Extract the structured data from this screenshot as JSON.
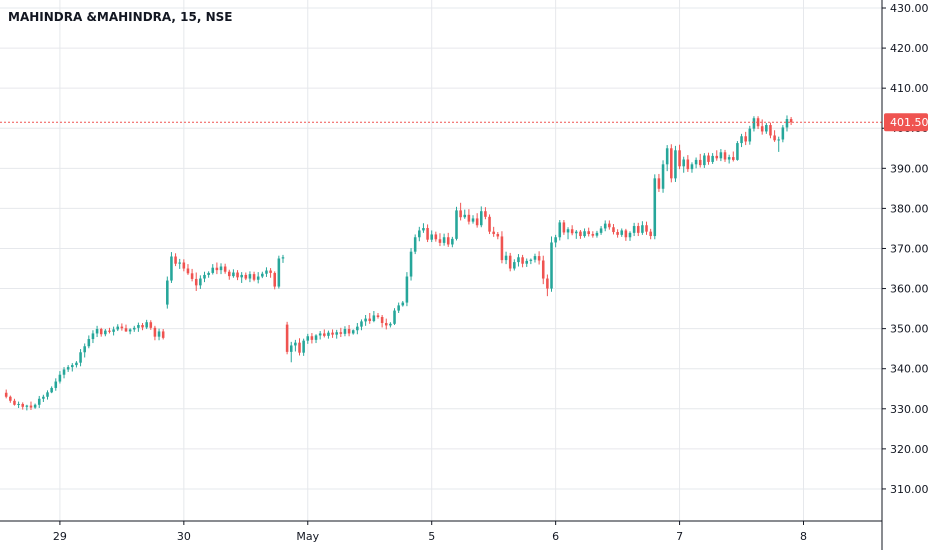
{
  "chart_data": {
    "type": "candlestick",
    "title": "MAHINDRA &MAHINDRA, 15, NSE",
    "ylim": [
      302,
      432
    ],
    "y_ticks": [
      310,
      320,
      330,
      340,
      350,
      360,
      370,
      380,
      390,
      400,
      410,
      420,
      430
    ],
    "y_tick_labels": [
      "310.00",
      "320.00",
      "330.00",
      "340.00",
      "350.00",
      "360.00",
      "370.00",
      "380.00",
      "390.00",
      "400.00",
      "410.00",
      "420.00",
      "430.00"
    ],
    "x_ticks": [
      {
        "label": "29",
        "at": 13
      },
      {
        "label": "30",
        "at": 43
      },
      {
        "label": "May",
        "at": 73
      },
      {
        "label": "5",
        "at": 103
      },
      {
        "label": "6",
        "at": 133
      },
      {
        "label": "7",
        "at": 163
      },
      {
        "label": "8",
        "at": 193
      }
    ],
    "x_range": [
      -1.5,
      212
    ],
    "last_price": 401.5,
    "last_price_label": "401.50",
    "grid": true,
    "colors": {
      "up": "#26a69a",
      "down": "#ef5350",
      "grid": "#e6e8ec",
      "last_line": "#ef5350",
      "axis": "#131722"
    },
    "candles": [
      [
        334,
        334.8,
        332.6,
        333
      ],
      [
        333,
        333.3,
        331.5,
        332
      ],
      [
        332,
        332.5,
        330.8,
        331
      ],
      [
        331,
        331.8,
        330.2,
        331.2
      ],
      [
        331.2,
        331.6,
        329.8,
        330.5
      ],
      [
        330.5,
        331,
        329.6,
        330.8
      ],
      [
        330.8,
        331.8,
        329.7,
        330.3
      ],
      [
        330.3,
        331.3,
        330,
        331
      ],
      [
        331,
        333.2,
        330.2,
        332.5
      ],
      [
        332.5,
        333.5,
        331.7,
        333
      ],
      [
        333,
        334.6,
        332.3,
        334.1
      ],
      [
        334.1,
        335.6,
        333.9,
        335.2
      ],
      [
        335.2,
        337.6,
        334.5,
        336.8
      ],
      [
        336.8,
        339.4,
        336.3,
        338.5
      ],
      [
        338.5,
        340.4,
        337.6,
        339.8
      ],
      [
        339.8,
        340.9,
        339.2,
        340.4
      ],
      [
        340.4,
        341.4,
        339.3,
        340.9
      ],
      [
        340.9,
        341.9,
        340.3,
        341.5
      ],
      [
        341.5,
        344.9,
        340.6,
        344.1
      ],
      [
        344.1,
        346.3,
        342.8,
        345.6
      ],
      [
        345.6,
        348.3,
        345.1,
        347.4
      ],
      [
        347.4,
        349.6,
        346.4,
        348.8
      ],
      [
        348.8,
        350.7,
        347.9,
        349.9
      ],
      [
        349.9,
        350.2,
        348,
        348.6
      ],
      [
        348.6,
        349.9,
        348.1,
        349.5
      ],
      [
        349.5,
        350.2,
        348.8,
        349.2
      ],
      [
        349.2,
        350.5,
        348.3,
        349.8
      ],
      [
        349.8,
        351.1,
        349.4,
        350.5
      ],
      [
        350.5,
        351.3,
        349.5,
        350.1
      ],
      [
        350.1,
        351,
        349.2,
        349.3
      ],
      [
        349.3,
        350.1,
        348.6,
        349.8
      ],
      [
        349.8,
        350.7,
        349.2,
        350.2
      ],
      [
        350.2,
        351.5,
        349.2,
        350.9
      ],
      [
        350.9,
        351.4,
        349.6,
        350.3
      ],
      [
        350.3,
        352.2,
        349.9,
        351.6
      ],
      [
        351.6,
        352.1,
        349.7,
        350.2
      ],
      [
        350.2,
        350.7,
        347.1,
        348
      ],
      [
        348,
        350,
        347.1,
        349.3
      ],
      [
        349.3,
        349.9,
        347.3,
        347.7
      ],
      [
        356,
        363,
        355,
        362
      ],
      [
        362,
        369.1,
        361.4,
        368
      ],
      [
        368,
        368.8,
        365.6,
        366.2
      ],
      [
        366.2,
        367.4,
        364.9,
        366.5
      ],
      [
        366.5,
        367.3,
        364.3,
        365
      ],
      [
        365,
        366.1,
        363.4,
        363.8
      ],
      [
        363.8,
        364.9,
        361.8,
        362.4
      ],
      [
        362.4,
        364,
        359.4,
        360.8
      ],
      [
        360.8,
        363.3,
        359.9,
        362.5
      ],
      [
        362.5,
        364.2,
        361.6,
        363.4
      ],
      [
        363.4,
        364.3,
        362.7,
        363.9
      ],
      [
        363.9,
        366.1,
        363.5,
        365.2
      ],
      [
        365.2,
        366.5,
        363.6,
        364.6
      ],
      [
        364.6,
        366.3,
        363.6,
        365.5
      ],
      [
        365.5,
        366.2,
        363.7,
        364.2
      ],
      [
        364.2,
        364.7,
        362.2,
        363.1
      ],
      [
        363.1,
        364.8,
        362.7,
        364
      ],
      [
        364,
        364.6,
        362.1,
        362.8
      ],
      [
        362.8,
        364.1,
        361.4,
        363.4
      ],
      [
        363.4,
        364,
        362.1,
        362.5
      ],
      [
        362.5,
        364.3,
        361.6,
        363.6
      ],
      [
        363.6,
        364.2,
        361.8,
        362.2
      ],
      [
        362.2,
        364.1,
        361.3,
        363
      ],
      [
        363,
        364.2,
        362.6,
        363.7
      ],
      [
        363.7,
        365.3,
        362.9,
        364.5
      ],
      [
        364.5,
        365.1,
        362.7,
        363.9
      ],
      [
        363.9,
        364.3,
        359.8,
        360.5
      ],
      [
        360.5,
        368.2,
        360,
        367.5
      ],
      [
        367.5,
        368.4,
        366.4,
        367.8
      ],
      [
        351,
        351.7,
        343.6,
        344.2
      ],
      [
        344.2,
        346.7,
        341.6,
        345.8
      ],
      [
        345.8,
        347.2,
        344.3,
        346.5
      ],
      [
        346.5,
        347.6,
        343.3,
        344
      ],
      [
        344,
        347.5,
        343.2,
        347
      ],
      [
        347,
        348.7,
        346.2,
        348.1
      ],
      [
        348.1,
        348.9,
        346.3,
        347.2
      ],
      [
        347.2,
        348.6,
        346.4,
        348.3
      ],
      [
        348.3,
        349.4,
        347.3,
        348.8
      ],
      [
        348.8,
        349.8,
        347.8,
        348.2
      ],
      [
        348.2,
        349.5,
        347.5,
        349
      ],
      [
        349,
        349.8,
        347.7,
        348.5
      ],
      [
        348.5,
        349.7,
        347.5,
        349.1
      ],
      [
        349.1,
        350.2,
        347.9,
        348.7
      ],
      [
        348.7,
        350.6,
        348.1,
        349.9
      ],
      [
        349.9,
        350.9,
        348.1,
        348.8
      ],
      [
        348.8,
        349.8,
        348.5,
        349.6
      ],
      [
        349.6,
        351.4,
        348.6,
        350.5
      ],
      [
        350.5,
        352.3,
        349.6,
        351.8
      ],
      [
        351.8,
        353.4,
        350.7,
        352.5
      ],
      [
        352.5,
        353.9,
        351.2,
        351.9
      ],
      [
        351.9,
        354.4,
        351.6,
        353.3
      ],
      [
        353.3,
        353.9,
        352.5,
        352.9
      ],
      [
        352.9,
        353.4,
        350.3,
        351.4
      ],
      [
        351.4,
        352.5,
        349.8,
        350.8
      ],
      [
        350.8,
        351.6,
        350.3,
        351.2
      ],
      [
        351.2,
        355.1,
        350.9,
        354.5
      ],
      [
        354.5,
        356.5,
        353.9,
        355.8
      ],
      [
        355.8,
        356.9,
        355.5,
        356.5
      ],
      [
        356.5,
        364.1,
        355.6,
        363
      ],
      [
        363,
        370.1,
        362,
        369.2
      ],
      [
        369.2,
        373.5,
        368.6,
        372.8
      ],
      [
        372.8,
        375.4,
        371.8,
        374.5
      ],
      [
        374.5,
        376.3,
        373.9,
        375.1
      ],
      [
        375.1,
        376,
        371.6,
        372.2
      ],
      [
        372.2,
        374.5,
        371.6,
        373.5
      ],
      [
        373.5,
        374.2,
        371.7,
        372.3
      ],
      [
        372.3,
        373.8,
        370.6,
        371.4
      ],
      [
        371.4,
        373.7,
        370.7,
        372.8
      ],
      [
        372.8,
        373.9,
        370.4,
        371
      ],
      [
        371,
        372.9,
        370.3,
        372.4
      ],
      [
        372.4,
        380.4,
        372,
        379.5
      ],
      [
        379.5,
        381.4,
        377,
        377.8
      ],
      [
        377.8,
        379.7,
        377.4,
        378.4
      ],
      [
        378.4,
        379.8,
        376,
        376.7
      ],
      [
        376.7,
        378.3,
        376.2,
        377.5
      ],
      [
        377.5,
        378.8,
        375.2,
        375.8
      ],
      [
        375.8,
        380.5,
        375.3,
        379.3
      ],
      [
        379.3,
        380.3,
        377.3,
        377.9
      ],
      [
        377.9,
        378.5,
        373.6,
        374.2
      ],
      [
        374.2,
        375.4,
        372.9,
        373.6
      ],
      [
        373.6,
        374.1,
        372.3,
        373
      ],
      [
        373,
        374.3,
        366.3,
        367.1
      ],
      [
        367.1,
        369.2,
        366.1,
        368.2
      ],
      [
        368.2,
        368.9,
        364.3,
        365
      ],
      [
        365,
        367.3,
        364.5,
        366.6
      ],
      [
        366.6,
        368.6,
        365.5,
        367.8
      ],
      [
        367.8,
        368.4,
        365.3,
        366.2
      ],
      [
        366.2,
        367.5,
        365.4,
        366.9
      ],
      [
        366.9,
        367.5,
        366.1,
        367.2
      ],
      [
        367.2,
        368.7,
        366.5,
        368.1
      ],
      [
        368.1,
        369.3,
        366,
        367
      ],
      [
        367,
        368.2,
        361.1,
        362.5
      ],
      [
        362.5,
        363.5,
        358.1,
        360
      ],
      [
        360,
        373,
        359.2,
        371.5
      ],
      [
        371.5,
        373.4,
        370.3,
        372.8
      ],
      [
        372.8,
        377.1,
        372,
        376.5
      ],
      [
        376.5,
        377.1,
        373.4,
        374
      ],
      [
        374,
        375.3,
        372.3,
        374.8
      ],
      [
        374.8,
        375.8,
        373.3,
        373.8
      ],
      [
        373.8,
        374.6,
        372.4,
        374.2
      ],
      [
        374.2,
        374.6,
        372.4,
        373.1
      ],
      [
        373.1,
        375,
        372.7,
        374.3
      ],
      [
        374.3,
        375.2,
        373,
        373.6
      ],
      [
        373.6,
        374.3,
        372.7,
        373.2
      ],
      [
        373.2,
        374.4,
        372.7,
        373.9
      ],
      [
        373.9,
        375.6,
        373.4,
        375
      ],
      [
        375,
        377,
        374.3,
        376.2
      ],
      [
        376.2,
        377,
        374.7,
        375.3
      ],
      [
        375.3,
        376.1,
        373.5,
        374.1
      ],
      [
        374.1,
        374.8,
        372.7,
        373.4
      ],
      [
        373.4,
        375,
        372.9,
        374.5
      ],
      [
        374.5,
        374.9,
        371.9,
        372.8
      ],
      [
        372.8,
        374.3,
        371.9,
        373.9
      ],
      [
        373.9,
        376.4,
        373.1,
        375.6
      ],
      [
        375.6,
        376.4,
        373.1,
        373.9
      ],
      [
        373.9,
        376.8,
        373.4,
        375.8
      ],
      [
        375.8,
        376.7,
        373.4,
        374.2
      ],
      [
        374.2,
        374.9,
        372.3,
        373.1
      ],
      [
        373.1,
        388.5,
        372.3,
        387.5
      ],
      [
        387.5,
        388.6,
        384.1,
        384.9
      ],
      [
        384.9,
        392,
        383.9,
        391
      ],
      [
        391,
        395.8,
        389.3,
        395
      ],
      [
        395,
        396,
        386.5,
        387.5
      ],
      [
        387.5,
        395.6,
        386.6,
        394.5
      ],
      [
        394.5,
        395.9,
        389.8,
        390.5
      ],
      [
        390.5,
        392.9,
        388.9,
        392.2
      ],
      [
        392.2,
        393.3,
        389.1,
        389.8
      ],
      [
        389.8,
        391.5,
        388.9,
        391
      ],
      [
        391,
        392.7,
        390,
        392.1
      ],
      [
        392.1,
        393.6,
        390.2,
        390.8
      ],
      [
        390.8,
        393.8,
        390.1,
        393.2
      ],
      [
        393.2,
        393.9,
        390.9,
        391.6
      ],
      [
        391.6,
        393.8,
        391.1,
        393.1
      ],
      [
        393.1,
        394.5,
        391.9,
        392.5
      ],
      [
        392.5,
        394.8,
        391.8,
        394
      ],
      [
        394,
        394.6,
        391.6,
        392.2
      ],
      [
        392.2,
        393.4,
        391.2,
        392.8
      ],
      [
        392.8,
        394.2,
        391.7,
        392.1
      ],
      [
        392.1,
        396.8,
        391.9,
        396.3
      ],
      [
        396.3,
        398.6,
        395.3,
        398
      ],
      [
        398,
        399.1,
        395.8,
        396.7
      ],
      [
        396.7,
        400.6,
        395.9,
        399.9
      ],
      [
        399.9,
        403,
        399.2,
        402.5
      ],
      [
        402.5,
        403,
        399.8,
        400.5
      ],
      [
        400.5,
        402.2,
        398.4,
        399.2
      ],
      [
        399.2,
        401.3,
        398.6,
        400.8
      ],
      [
        400.8,
        401.4,
        397.5,
        398.2
      ],
      [
        398.2,
        399.5,
        396.6,
        397
      ],
      [
        397,
        397.9,
        394.1,
        397.2
      ],
      [
        397.2,
        400.8,
        396.5,
        400.2
      ],
      [
        400.2,
        403.2,
        399.2,
        402.3
      ],
      [
        402.3,
        402.8,
        400.8,
        401.5
      ]
    ]
  }
}
